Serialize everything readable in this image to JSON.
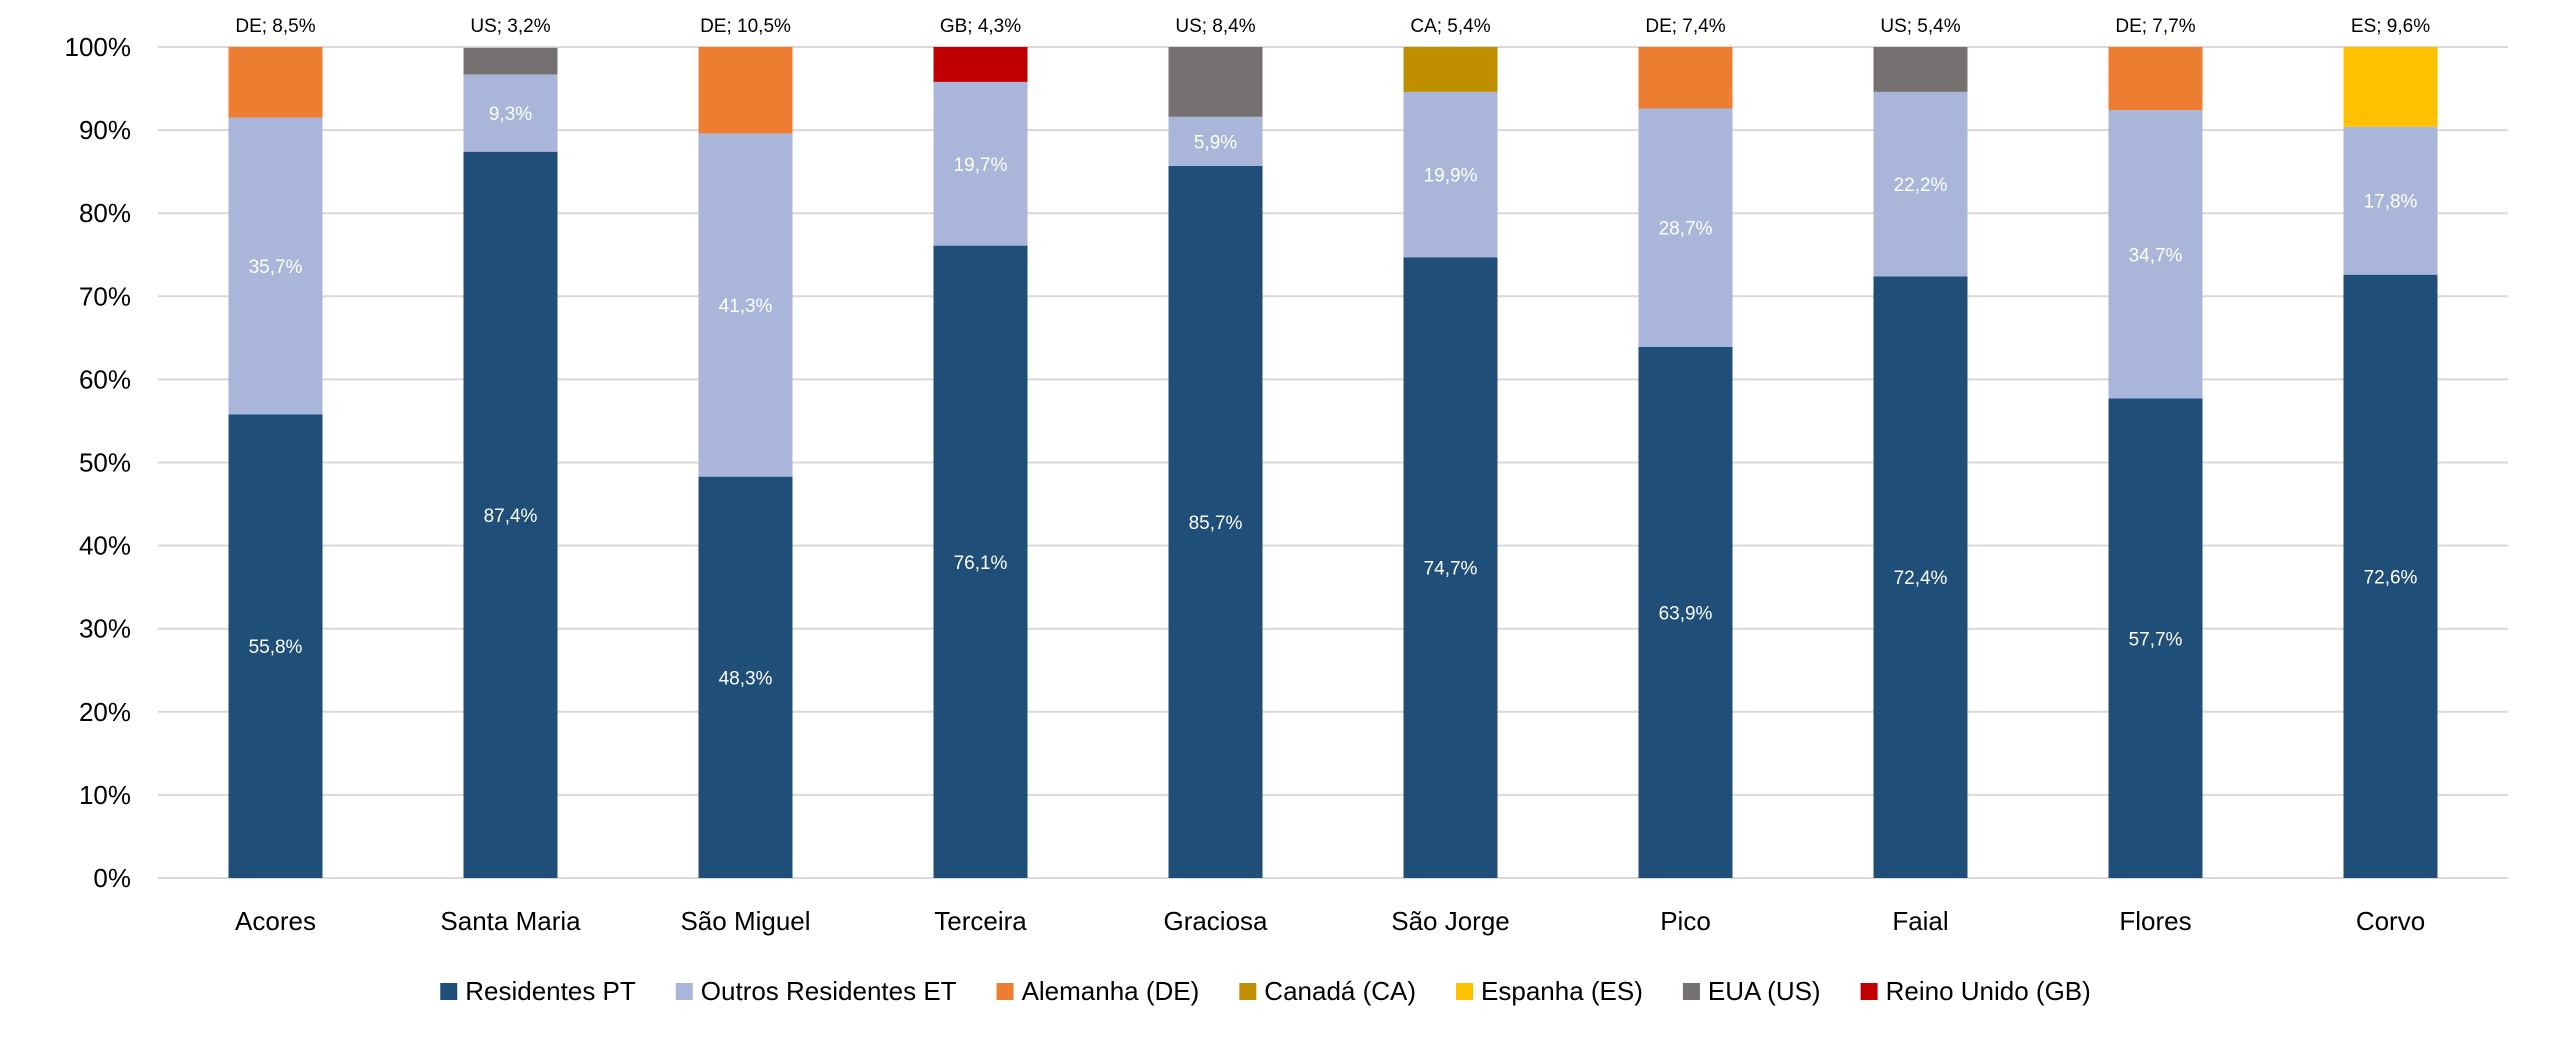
{
  "chart_data": {
    "type": "bar",
    "stacked": true,
    "percent": true,
    "categories": [
      "Acores",
      "Santa Maria",
      "São Miguel",
      "Terceira",
      "Graciosa",
      "São Jorge",
      "Pico",
      "Faial",
      "Flores",
      "Corvo"
    ],
    "series": [
      {
        "name": "Residentes PT",
        "color": "#1f4e79",
        "values": [
          55.8,
          87.4,
          48.3,
          76.1,
          85.7,
          74.7,
          63.9,
          72.4,
          57.7,
          72.6
        ],
        "labels": [
          "55,8%",
          "87,4%",
          "48,3%",
          "76,1%",
          "85,7%",
          "74,7%",
          "63,9%",
          "72,4%",
          "57,7%",
          "72,6%"
        ]
      },
      {
        "name": "Outros Residentes ET",
        "color": "#a9b6da",
        "values": [
          35.7,
          9.3,
          41.3,
          19.7,
          5.9,
          19.9,
          28.7,
          22.2,
          34.7,
          17.8
        ],
        "labels": [
          "35,7%",
          "9,3%",
          "41,3%",
          "19,7%",
          "5,9%",
          "19,9%",
          "28,7%",
          "22,2%",
          "34,7%",
          "17,8%"
        ]
      },
      {
        "name": "Alemanha (DE)",
        "color": "#ed7d31",
        "values": [
          8.5,
          0,
          10.5,
          0,
          0,
          0,
          7.4,
          0,
          7.7,
          0
        ]
      },
      {
        "name": "Canadá (CA)",
        "color": "#bf8f00",
        "values": [
          0,
          0,
          0,
          0,
          0,
          5.4,
          0,
          0,
          0,
          0
        ]
      },
      {
        "name": "Espanha (ES)",
        "color": "#ffc000",
        "values": [
          0,
          0,
          0,
          0,
          0,
          0,
          0,
          0,
          0,
          9.6
        ]
      },
      {
        "name": "EUA (US)",
        "color": "#767171",
        "values": [
          0,
          3.2,
          0,
          0,
          8.4,
          0,
          0,
          5.4,
          0,
          0
        ]
      },
      {
        "name": "Reino Unido (GB)",
        "color": "#c00000",
        "values": [
          0,
          0,
          0,
          4.3,
          0,
          0,
          0,
          0,
          0,
          0
        ]
      }
    ],
    "top_labels": [
      "DE; 8,5%",
      "US; 3,2%",
      "DE; 10,5%",
      "GB; 4,3%",
      "US; 8,4%",
      "CA; 5,4%",
      "DE; 7,4%",
      "US; 5,4%",
      "DE; 7,7%",
      "ES; 9,6%"
    ],
    "y_ticks": [
      "0%",
      "10%",
      "20%",
      "30%",
      "40%",
      "50%",
      "60%",
      "70%",
      "80%",
      "90%",
      "100%"
    ],
    "ylim": [
      0,
      100
    ],
    "grid": true,
    "gridline_color": "#d9d9d9",
    "legend_position": "bottom",
    "title": "",
    "xlabel": "",
    "ylabel": ""
  }
}
